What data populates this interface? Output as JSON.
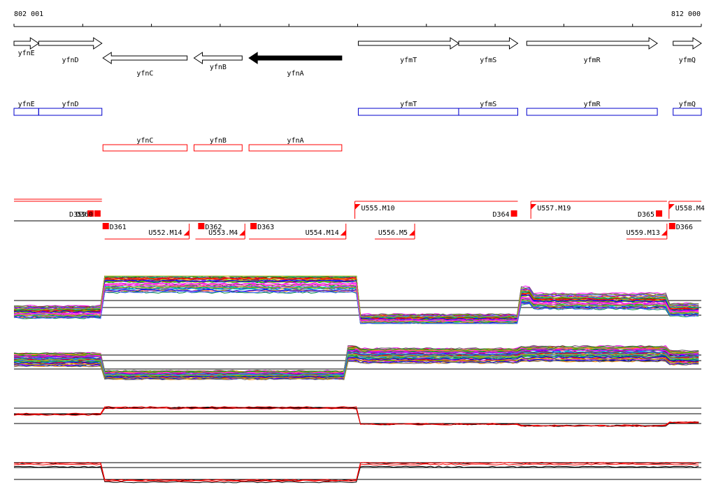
{
  "ruler": {
    "start_label": "802 001",
    "end_label": "812 000",
    "start_bp": 802001,
    "end_bp": 812000
  },
  "colors": {
    "gene_outline": "#000000",
    "gene_selected": "#000000",
    "operon_blue": "#0000cc",
    "transcript_red": "#ff0000",
    "baseline": "#000000"
  },
  "genes_arrows": [
    {
      "name": "yfnE",
      "start_bp": 802001,
      "end_bp": 802360,
      "strand": "+",
      "selected": false
    },
    {
      "name": "yfnD",
      "start_bp": 802360,
      "end_bp": 803280,
      "strand": "+",
      "selected": false
    },
    {
      "name": "yfnC",
      "start_bp": 803295,
      "end_bp": 804520,
      "strand": "-",
      "selected": false
    },
    {
      "name": "yfnB",
      "start_bp": 804620,
      "end_bp": 805320,
      "strand": "-",
      "selected": false
    },
    {
      "name": "yfnA",
      "start_bp": 805420,
      "end_bp": 806770,
      "strand": "-",
      "selected": true
    },
    {
      "name": "yfmT",
      "start_bp": 807010,
      "end_bp": 808470,
      "strand": "+",
      "selected": false
    },
    {
      "name": "yfmS",
      "start_bp": 808470,
      "end_bp": 809330,
      "strand": "+",
      "selected": false
    },
    {
      "name": "yfmR",
      "start_bp": 809460,
      "end_bp": 811360,
      "strand": "+",
      "selected": false
    },
    {
      "name": "yfmQ",
      "start_bp": 811590,
      "end_bp": 812000,
      "strand": "+",
      "selected": false
    }
  ],
  "operon_boxes_plus": [
    {
      "name": "yfnE",
      "start_bp": 802001,
      "end_bp": 802360
    },
    {
      "name": "yfnD",
      "start_bp": 802360,
      "end_bp": 803280
    },
    {
      "name": "yfmT",
      "start_bp": 807010,
      "end_bp": 808470
    },
    {
      "name": "yfmS",
      "start_bp": 808470,
      "end_bp": 809330
    },
    {
      "name": "yfmR",
      "start_bp": 809460,
      "end_bp": 811360
    },
    {
      "name": "yfmQ",
      "start_bp": 811590,
      "end_bp": 812000
    }
  ],
  "operon_boxes_minus": [
    {
      "name": "yfnC",
      "start_bp": 803295,
      "end_bp": 804520
    },
    {
      "name": "yfnB",
      "start_bp": 804620,
      "end_bp": 805320
    },
    {
      "name": "yfnA",
      "start_bp": 805420,
      "end_bp": 806770
    }
  ],
  "segments_top": [
    {
      "label": "U555.M10",
      "start_bp": 806960,
      "end_bp": 809330
    },
    {
      "label": "U557.M19",
      "start_bp": 809520,
      "end_bp": 811500
    },
    {
      "label": "U558.M4",
      "start_bp": 811530,
      "end_bp": 812000
    }
  ],
  "segments_bottom": [
    {
      "label": "U552.M14",
      "start_bp": 803320,
      "end_bp": 804550
    },
    {
      "label": "U553.M4",
      "start_bp": 804640,
      "end_bp": 805360
    },
    {
      "label": "U554.M14",
      "start_bp": 805420,
      "end_bp": 806830
    },
    {
      "label": "U556.M5",
      "start_bp": 807250,
      "end_bp": 807830
    },
    {
      "label": "U559.M13",
      "start_bp": 810910,
      "end_bp": 811500
    }
  ],
  "breakpoints_top": [
    {
      "label": "D359",
      "bp": 803100
    },
    {
      "label": "D360",
      "bp": 803200
    },
    {
      "label": "D364",
      "bp": 809260
    },
    {
      "label": "D365",
      "bp": 811370
    }
  ],
  "breakpoints_bottom": [
    {
      "label": "D361",
      "bp": 803290
    },
    {
      "label": "D362",
      "bp": 804680
    },
    {
      "label": "D363",
      "bp": 805440
    },
    {
      "label": "D366",
      "bp": 811530
    }
  ],
  "expression_panels": [
    {
      "id": "upper-multi",
      "profile": [
        [
          802001,
          0.25
        ],
        [
          803290,
          0.9
        ],
        [
          807000,
          0.1
        ],
        [
          809380,
          0.6
        ],
        [
          809520,
          0.48
        ],
        [
          811530,
          0.3
        ],
        [
          812000,
          0.25
        ]
      ],
      "colored": true
    },
    {
      "id": "lower-multi",
      "profile": [
        [
          802001,
          0.55
        ],
        [
          803290,
          0.15
        ],
        [
          806830,
          0.7
        ],
        [
          807000,
          0.65
        ],
        [
          809380,
          0.7
        ],
        [
          811530,
          0.6
        ],
        [
          812000,
          0.6
        ]
      ],
      "colored": true
    },
    {
      "id": "upper-pair",
      "profile": [
        [
          802001,
          0.5
        ],
        [
          803290,
          0.7
        ],
        [
          807000,
          0.2
        ],
        [
          809380,
          0.15
        ],
        [
          811530,
          0.25
        ],
        [
          812000,
          0.1
        ]
      ],
      "colored": false
    },
    {
      "id": "lower-pair",
      "profile": [
        [
          802001,
          0.75
        ],
        [
          803290,
          0.2
        ],
        [
          806830,
          0.2
        ],
        [
          807000,
          0.75
        ],
        [
          809380,
          0.75
        ],
        [
          812000,
          0.8
        ]
      ],
      "colored": false
    }
  ]
}
